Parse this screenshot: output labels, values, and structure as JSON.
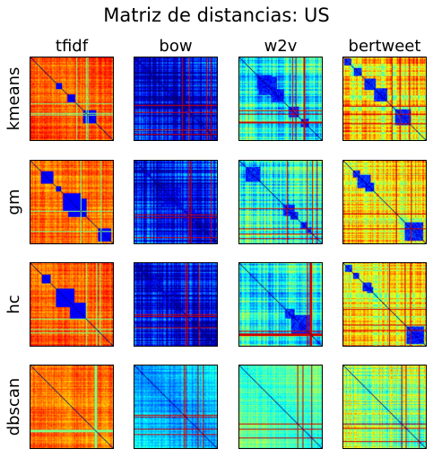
{
  "chart_data": {
    "type": "heatmap",
    "title": "Matriz de distancias: US",
    "columns": [
      "tfidf",
      "bow",
      "w2v",
      "bertweet"
    ],
    "rows": [
      "kmeans",
      "gm",
      "hc",
      "dbscan"
    ],
    "colormap": "jet",
    "grid": false,
    "axis_ticks": false,
    "panel_overall_level": [
      [
        0.82,
        0.18,
        0.45,
        0.72
      ],
      [
        0.8,
        0.22,
        0.47,
        0.7
      ],
      [
        0.82,
        0.2,
        0.46,
        0.71
      ],
      [
        0.8,
        0.38,
        0.52,
        0.6
      ]
    ]
  }
}
